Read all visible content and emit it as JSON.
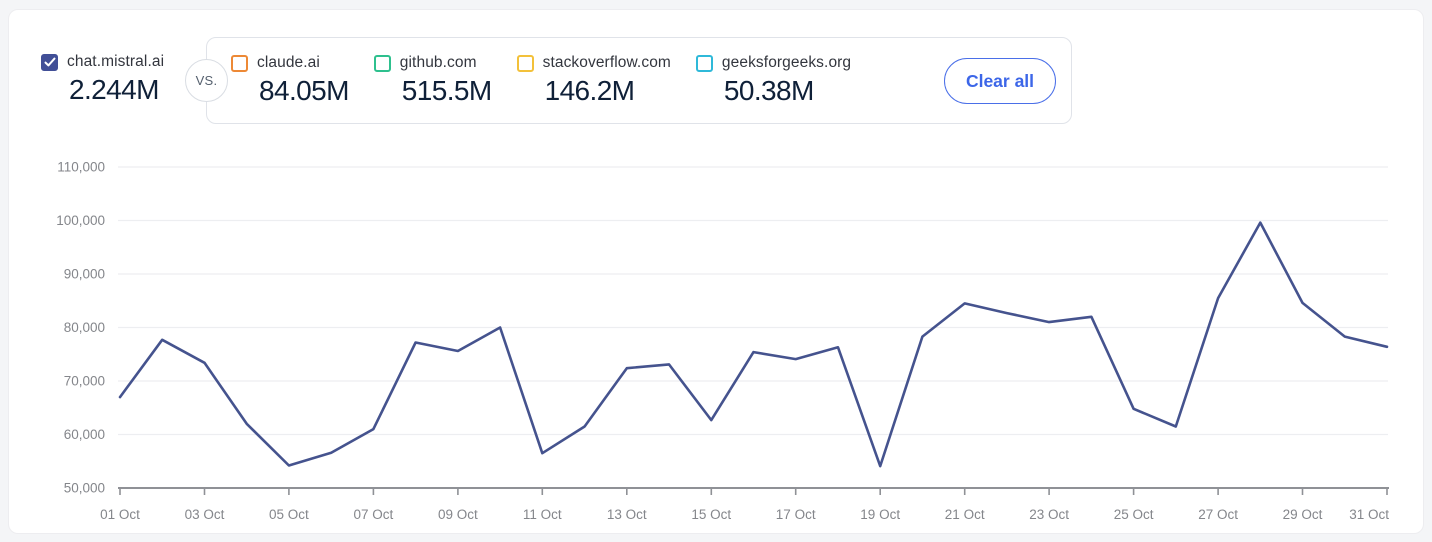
{
  "header": {
    "primary_site": {
      "label": "chat.mistral.ai",
      "value": "2.244M",
      "color": "#414F97"
    },
    "vs_label": "VS.",
    "compare_sites": [
      {
        "label": "claude.ai",
        "value": "84.05M",
        "color": "#ED8936"
      },
      {
        "label": "github.com",
        "value": "515.5M",
        "color": "#2EC08E"
      },
      {
        "label": "stackoverflow.com",
        "value": "146.2M",
        "color": "#F3C13A"
      },
      {
        "label": "geeksforgeeks.org",
        "value": "50.38M",
        "color": "#2FB9D9"
      }
    ],
    "clear_all_label": "Clear all"
  },
  "chart_data": {
    "type": "line",
    "title": "",
    "xlabel": "",
    "ylabel": "",
    "x": [
      "01 Oct",
      "02 Oct",
      "03 Oct",
      "04 Oct",
      "05 Oct",
      "06 Oct",
      "07 Oct",
      "08 Oct",
      "09 Oct",
      "10 Oct",
      "11 Oct",
      "12 Oct",
      "13 Oct",
      "14 Oct",
      "15 Oct",
      "16 Oct",
      "17 Oct",
      "18 Oct",
      "19 Oct",
      "20 Oct",
      "21 Oct",
      "22 Oct",
      "23 Oct",
      "24 Oct",
      "25 Oct",
      "26 Oct",
      "27 Oct",
      "28 Oct",
      "29 Oct",
      "30 Oct",
      "31 Oct"
    ],
    "x_tick_every": 2,
    "series": [
      {
        "name": "chat.mistral.ai",
        "color": "#45538E",
        "values": [
          67000,
          77700,
          73400,
          62000,
          54200,
          56600,
          61000,
          77200,
          75600,
          80000,
          56500,
          61500,
          72400,
          73100,
          62700,
          75400,
          74100,
          76300,
          54100,
          78300,
          84500,
          82700,
          81000,
          82000,
          64800,
          61500,
          85500,
          99600,
          84600,
          78300,
          76400
        ]
      }
    ],
    "ylim": [
      50000,
      110000
    ],
    "y_ticks": [
      50000,
      60000,
      70000,
      80000,
      90000,
      100000,
      110000
    ],
    "y_tick_labels": [
      "50,000",
      "60,000",
      "70,000",
      "80,000",
      "90,000",
      "100,000",
      "110,000"
    ],
    "grid": true,
    "legend": "none"
  }
}
